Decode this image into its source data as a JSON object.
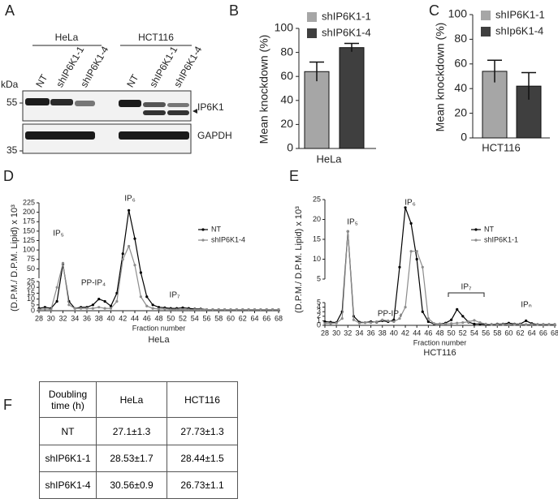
{
  "panel_labels": [
    "A",
    "B",
    "C",
    "D",
    "E",
    "F"
  ],
  "blot": {
    "kda_label": "kDa",
    "markers": [
      55,
      35
    ],
    "groups": [
      "HeLa",
      "HCT116"
    ],
    "lanes": [
      [
        "NT",
        "shIP6K1-1",
        "shIP6K1-4"
      ],
      [
        "NT",
        "shIP6K1-1",
        "shIP6K1-4"
      ]
    ],
    "proteins": [
      "IP6K1",
      "GAPDH"
    ]
  },
  "chart_data": [
    {
      "type": "bar",
      "ylabel": "Mean knockdown (%)",
      "categories": [
        "HeLa"
      ],
      "ylim": [
        0,
        100
      ],
      "yticks": [
        0,
        20,
        40,
        60,
        80,
        100
      ],
      "series": [
        {
          "name": "shIP6K1-1",
          "color": "#a6a6a6",
          "values": [
            64
          ],
          "errors": [
            8
          ]
        },
        {
          "name": "shIP6K1-4",
          "color": "#3f3f3f",
          "values": [
            84
          ],
          "errors": [
            3.5
          ]
        }
      ]
    },
    {
      "type": "bar",
      "ylabel": "Mean knockdown (%)",
      "categories": [
        "HCT116"
      ],
      "ylim": [
        0,
        100
      ],
      "yticks": [
        0,
        20,
        40,
        60,
        80,
        100
      ],
      "series": [
        {
          "name": "shIP6K1-1",
          "color": "#a6a6a6",
          "values": [
            54
          ],
          "errors": [
            9
          ]
        },
        {
          "name": "shIp6K1-4",
          "color": "#3f3f3f",
          "values": [
            42
          ],
          "errors": [
            11
          ]
        }
      ]
    },
    {
      "type": "line",
      "ylabel": "(D.P.M./ D.P.M. Lipid) x 10³",
      "xlabel": "Fraction number",
      "caption": "HeLa",
      "x": [
        28,
        29,
        30,
        31,
        32,
        33,
        34,
        35,
        36,
        37,
        38,
        39,
        40,
        41,
        42,
        43,
        44,
        45,
        46,
        47,
        48,
        49,
        50,
        51,
        52,
        53,
        54,
        55,
        56,
        57,
        58,
        59,
        60,
        61,
        62,
        63,
        64,
        65,
        66,
        67,
        68
      ],
      "xlim": [
        28,
        68
      ],
      "xticks": [
        28,
        30,
        32,
        34,
        36,
        38,
        40,
        42,
        44,
        46,
        48,
        50,
        52,
        54,
        56,
        58,
        60,
        62,
        64,
        66,
        68
      ],
      "y_segments": [
        {
          "ylim": [
            0,
            25
          ],
          "yticks": [
            0,
            5,
            10,
            15,
            20,
            25
          ]
        },
        {
          "ylim": [
            25,
            225
          ],
          "yticks": [
            50,
            75,
            100,
            125,
            150,
            175,
            200,
            225
          ]
        }
      ],
      "annotations": [
        "IP₅",
        "PP-IP₄",
        "IP₆",
        "IP₇"
      ],
      "series": [
        {
          "name": "NT",
          "color": "#000000",
          "values": [
            2,
            3,
            2,
            8,
            62,
            8,
            2,
            3,
            3,
            5,
            10,
            8,
            4,
            15,
            90,
            205,
            130,
            40,
            12,
            5,
            3,
            2.5,
            2,
            2,
            2.5,
            2,
            1.5,
            1.5,
            1,
            1,
            1,
            1,
            1,
            1,
            1,
            1,
            1,
            1,
            1,
            1,
            1
          ]
        },
        {
          "name": "shIP6K1-4",
          "color": "#8c8c8c",
          "values": [
            1,
            1.5,
            1,
            20,
            65,
            5,
            2,
            2,
            2,
            2,
            3,
            2,
            2,
            8,
            75,
            110,
            60,
            12,
            4,
            2,
            1.5,
            1.5,
            1,
            1,
            1,
            1,
            1,
            1,
            1,
            1,
            1,
            1,
            1,
            1,
            1,
            1,
            1,
            1,
            1,
            1,
            1
          ]
        }
      ]
    },
    {
      "type": "line",
      "ylabel": "(D.P.M./ D.P.M. Lipid) x 10³",
      "xlabel": "Fraction number",
      "caption": "HCT116",
      "x": [
        28,
        29,
        30,
        31,
        32,
        33,
        34,
        35,
        36,
        37,
        38,
        39,
        40,
        41,
        42,
        43,
        44,
        45,
        46,
        47,
        48,
        49,
        50,
        51,
        52,
        53,
        54,
        55,
        56,
        57,
        58,
        59,
        60,
        61,
        62,
        63,
        64,
        65,
        66,
        67,
        68
      ],
      "xlim": [
        28,
        68
      ],
      "xticks": [
        28,
        30,
        32,
        34,
        36,
        38,
        40,
        42,
        44,
        46,
        48,
        50,
        52,
        54,
        56,
        58,
        60,
        62,
        64,
        66,
        68
      ],
      "y_segments": [
        {
          "ylim": [
            0,
            5
          ],
          "yticks": [
            0,
            1,
            2,
            3,
            4,
            5
          ]
        },
        {
          "ylim": [
            5,
            25
          ],
          "yticks": [
            5,
            10,
            15,
            20,
            25
          ]
        }
      ],
      "annotations": [
        "IP₅",
        "PP-IP₄",
        "IP₆",
        "IP₇",
        "IPₙ"
      ],
      "series": [
        {
          "name": "NT",
          "color": "#000000",
          "values": [
            0.8,
            0.7,
            0.6,
            3,
            17,
            2,
            0.7,
            0.6,
            0.8,
            0.7,
            1,
            0.8,
            1.2,
            8,
            23,
            19,
            10,
            3,
            0.8,
            0.3,
            0.3,
            0.5,
            1.2,
            3.5,
            2,
            0.7,
            0.3,
            0.3,
            0.2,
            0.2,
            0.3,
            0.3,
            0.5,
            0.3,
            0.3,
            1,
            0.4,
            0.2,
            0.2,
            0.2,
            0.2
          ]
        },
        {
          "name": "shIP6K1-1",
          "color": "#8c8c8c",
          "values": [
            0.4,
            0.4,
            0.5,
            1.5,
            17,
            1.2,
            0.5,
            0.6,
            0.6,
            0.8,
            1.2,
            1,
            0.8,
            1.5,
            4,
            12,
            12,
            8,
            1.5,
            0.4,
            0.3,
            0.3,
            0.4,
            0.5,
            0.6,
            0.8,
            1.1,
            0.6,
            0.3,
            0.2,
            0.2,
            0.2,
            0.2,
            0.2,
            0.2,
            0.2,
            0.2,
            0.2,
            0.2,
            0.2,
            0.2
          ]
        }
      ]
    }
  ],
  "table": {
    "header": [
      "Doubling time (h)",
      "HeLa",
      "HCT116"
    ],
    "rows": [
      [
        "NT",
        "27.1±1.3",
        "27.73±1.3"
      ],
      [
        "shIP6K1-1",
        "28.53±1.7",
        "28.44±1.5"
      ],
      [
        "shIP6K1-4",
        "30.56±0.9",
        "26.73±1.1"
      ]
    ]
  }
}
